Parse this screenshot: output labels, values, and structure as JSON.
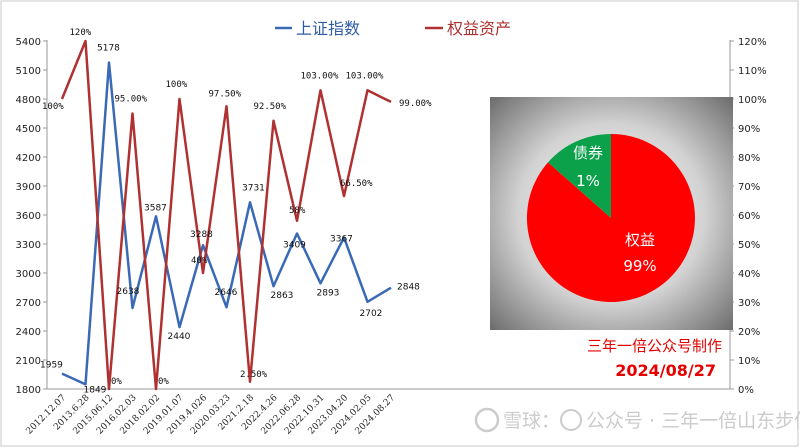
{
  "chart_data": [
    {
      "type": "line",
      "categories": [
        "2012.12.07",
        "2013.6.28",
        "2015.06.12",
        "2016.02.03",
        "2018.02.02",
        "2019.01.07",
        "2019.4.026",
        "2020.03.23",
        "2021.2.18",
        "2022.4.26",
        "2022.06.28",
        "2022.10.31",
        "2023.04.20",
        "2024.02.05",
        "2024.08.27"
      ],
      "series": [
        {
          "name": "上证指数",
          "color": "#3a6ab5",
          "axis": "left",
          "values": [
            1959,
            1849,
            5178,
            2638,
            3587,
            2440,
            3288,
            2646,
            3731,
            2863,
            3409,
            2893,
            3367,
            2702,
            2848
          ],
          "labels": [
            "1959",
            "1849",
            "5178",
            "2638",
            "3587",
            "2440",
            "3288",
            "2646",
            "3731",
            "2863",
            "3409",
            "2893",
            "3367",
            "2702",
            "2848"
          ]
        },
        {
          "name": "权益资产",
          "color": "#b03131",
          "axis": "right",
          "values": [
            100,
            120,
            0,
            95,
            0,
            100,
            40,
            97.5,
            2.5,
            92.5,
            58,
            103,
            66.5,
            103,
            99
          ],
          "labels": [
            "100%",
            "120%",
            "0%",
            "95.00%",
            "0%",
            "100%",
            "40%",
            "97.50%",
            "2.50%",
            "92.50%",
            "58%",
            "103.00%",
            "66.50%",
            "103.00%",
            "99.00%"
          ]
        }
      ],
      "y_left": {
        "min": 1800,
        "max": 5400,
        "step": 300,
        "ticks": [
          "1800",
          "2100",
          "2400",
          "2700",
          "3000",
          "3300",
          "3600",
          "3900",
          "4200",
          "4500",
          "4800",
          "5100",
          "5400"
        ]
      },
      "y_right": {
        "min": 0,
        "max": 120,
        "step": 10,
        "ticks": [
          "0%",
          "10%",
          "20%",
          "30%",
          "40%",
          "50%",
          "60%",
          "70%",
          "80%",
          "90%",
          "100%",
          "110%",
          "120%"
        ]
      },
      "legend_position": "top-center",
      "grid": false
    },
    {
      "type": "pie",
      "slices": [
        {
          "name": "权益",
          "label": "权益",
          "pct": "99%",
          "value": 99,
          "color": "#ff0000"
        },
        {
          "name": "债券",
          "label": "债券",
          "pct": "1%",
          "value": 1,
          "color": "#0aa14a"
        }
      ]
    }
  ],
  "credit": {
    "line1": "三年一倍公众号制作",
    "line2": "2024/08/27"
  },
  "watermark": {
    "text1": "雪球：",
    "text2": "公众号 · 三年一倍山东步倍"
  }
}
